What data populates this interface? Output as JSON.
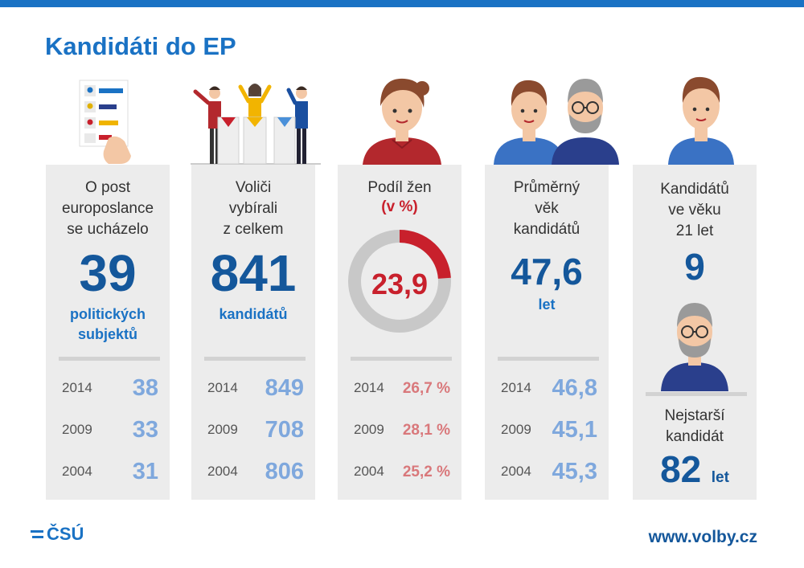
{
  "title": "Kandidáti do EP",
  "footer": {
    "logo_text": "ČSÚ",
    "website": "www.volby.cz"
  },
  "columns": [
    {
      "head": [
        "O post",
        "europoslance",
        "se ucházelo"
      ],
      "value": "39",
      "sub": [
        "politických",
        "subjektů"
      ],
      "history": [
        {
          "year": "2014",
          "value": "38"
        },
        {
          "year": "2009",
          "value": "33"
        },
        {
          "year": "2004",
          "value": "31"
        }
      ]
    },
    {
      "head": [
        "Voliči",
        "vybírali",
        "z celkem"
      ],
      "value": "841",
      "sub": [
        "kandidátů"
      ],
      "history": [
        {
          "year": "2014",
          "value": "849"
        },
        {
          "year": "2009",
          "value": "708"
        },
        {
          "year": "2004",
          "value": "806"
        }
      ]
    },
    {
      "head": [
        "Podíl žen"
      ],
      "unit": "(v %)",
      "value": "23,9",
      "donut_percent": 23.9,
      "history": [
        {
          "year": "2014",
          "value": "26,7 %"
        },
        {
          "year": "2009",
          "value": "28,1 %"
        },
        {
          "year": "2004",
          "value": "25,2 %"
        }
      ]
    },
    {
      "head": [
        "Průměrný",
        "věk",
        "kandidátů"
      ],
      "value": "47,6",
      "sub": [
        "let"
      ],
      "history": [
        {
          "year": "2014",
          "value": "46,8"
        },
        {
          "year": "2009",
          "value": "45,1"
        },
        {
          "year": "2004",
          "value": "45,3"
        }
      ]
    },
    {
      "head": [
        "Kandidátů",
        "ve věku",
        "21 let"
      ],
      "value": "9",
      "oldest_label": [
        "Nejstarší",
        "kandidát"
      ],
      "oldest_value": "82",
      "oldest_unit": "let"
    }
  ],
  "colors": {
    "accent": "#1a72c4",
    "dark_blue": "#14579b",
    "light_blue": "#7fa8dd",
    "red": "#c8202c",
    "pink": "#d9787b",
    "panel": "#ececec"
  }
}
